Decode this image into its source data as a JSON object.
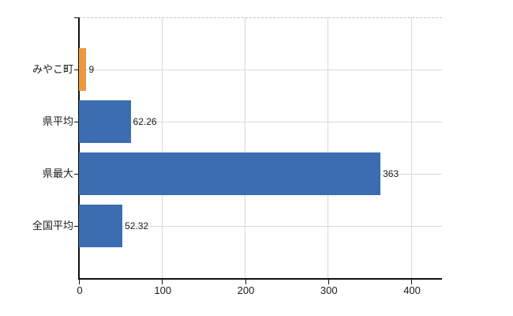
{
  "chart_data": {
    "type": "bar",
    "orientation": "horizontal",
    "categories": [
      "みやこ町",
      "県平均",
      "県最大",
      "全国平均"
    ],
    "values": [
      9,
      62.26,
      363,
      52.32
    ],
    "value_labels": [
      "9",
      "62.26",
      "363",
      "52.32"
    ],
    "bar_colors": [
      "#EE983E",
      "#3C6DB1",
      "#3C6DB1",
      "#3C6DB1"
    ],
    "x_ticks": [
      0,
      100,
      200,
      300,
      400
    ],
    "x_tick_labels": [
      "0",
      "100",
      "200",
      "300",
      "400"
    ],
    "xlim": [
      0,
      437
    ],
    "grid": true,
    "legend_position": "none",
    "colors": {
      "accent_orange": "#EE983E",
      "accent_blue": "#3C6DB1",
      "axis": "#111111",
      "grid_horizontal": "#d5dcd5",
      "grid_vertical": "#d7d7dc",
      "top_border_dashed": "#c3c3c3",
      "background": "#ffffff"
    }
  }
}
